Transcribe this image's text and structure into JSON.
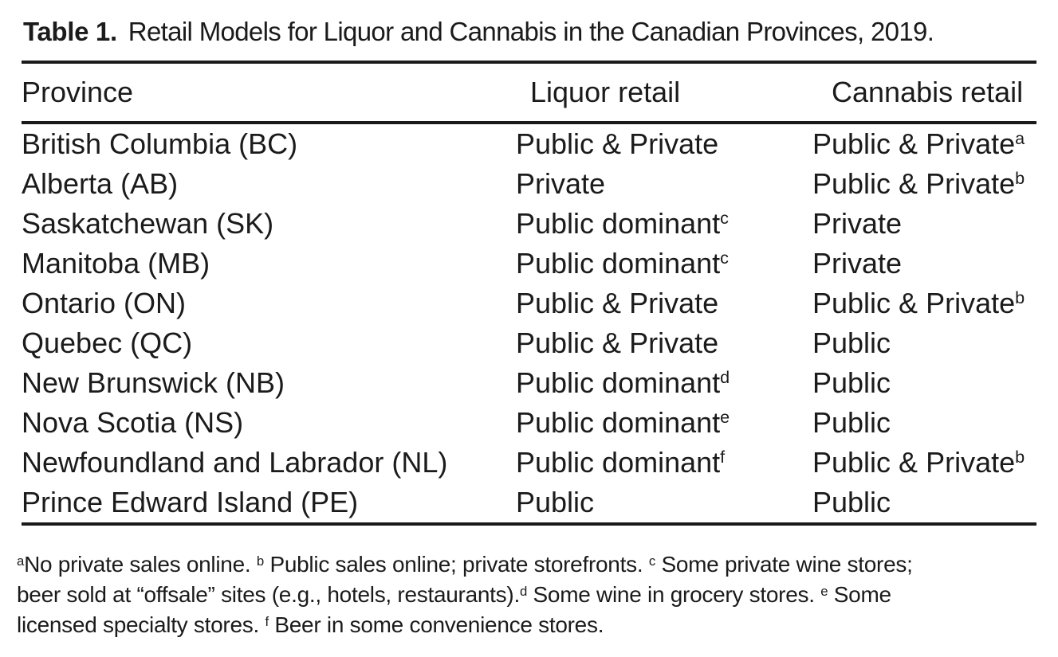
{
  "caption": {
    "label": "Table 1.",
    "text": "Retail Models for Liquor and Cannabis in the Canadian Provinces, 2019."
  },
  "table": {
    "columns": [
      "Province",
      "Liquor retail",
      "Cannabis retail"
    ],
    "rows": [
      {
        "province": "British Columbia (BC)",
        "liquor": {
          "text": "Public & Private",
          "sup": ""
        },
        "cannabis": {
          "text": "Public & Private",
          "sup": "a"
        }
      },
      {
        "province": "Alberta (AB)",
        "liquor": {
          "text": "Private",
          "sup": ""
        },
        "cannabis": {
          "text": "Public & Private",
          "sup": "b"
        }
      },
      {
        "province": "Saskatchewan (SK)",
        "liquor": {
          "text": "Public dominant",
          "sup": "c"
        },
        "cannabis": {
          "text": "Private",
          "sup": ""
        }
      },
      {
        "province": "Manitoba (MB)",
        "liquor": {
          "text": "Public dominant",
          "sup": "c"
        },
        "cannabis": {
          "text": "Private",
          "sup": ""
        }
      },
      {
        "province": "Ontario (ON)",
        "liquor": {
          "text": "Public & Private",
          "sup": ""
        },
        "cannabis": {
          "text": "Public & Private",
          "sup": "b"
        }
      },
      {
        "province": "Quebec (QC)",
        "liquor": {
          "text": "Public & Private",
          "sup": ""
        },
        "cannabis": {
          "text": "Public",
          "sup": ""
        }
      },
      {
        "province": "New Brunswick (NB)",
        "liquor": {
          "text": "Public dominant",
          "sup": "d"
        },
        "cannabis": {
          "text": "Public",
          "sup": ""
        }
      },
      {
        "province": "Nova Scotia (NS)",
        "liquor": {
          "text": "Public dominant",
          "sup": "e"
        },
        "cannabis": {
          "text": "Public",
          "sup": ""
        }
      },
      {
        "province": "Newfoundland and Labrador (NL)",
        "liquor": {
          "text": "Public dominant",
          "sup": "f"
        },
        "cannabis": {
          "text": "Public & Private",
          "sup": "b"
        }
      },
      {
        "province": "Prince Edward Island (PE)",
        "liquor": {
          "text": "Public",
          "sup": ""
        },
        "cannabis": {
          "text": "Public",
          "sup": ""
        }
      }
    ]
  },
  "footnotes": {
    "line1": [
      "a",
      "No private sales online. ",
      "b",
      " Public sales online; private storefronts. ",
      "c",
      " Some private wine stores;"
    ],
    "line2": [
      "beer sold at “offsale” sites (e.g., hotels, restaurants).",
      "d",
      " Some wine in grocery stores. ",
      "e",
      " Some"
    ],
    "line3": [
      "licensed specialty stores. ",
      "f",
      " Beer in some convenience stores."
    ]
  }
}
